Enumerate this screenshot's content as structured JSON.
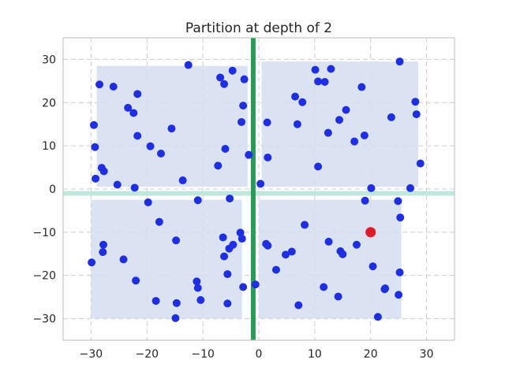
{
  "chart_data": {
    "type": "scatter",
    "title": "Partition at depth of 2",
    "xlim": [
      -35,
      35
    ],
    "ylim": [
      -35,
      35
    ],
    "xticks": [
      -30,
      -20,
      -10,
      0,
      10,
      20,
      30
    ],
    "yticks": [
      -30,
      -20,
      -10,
      0,
      10,
      20,
      30
    ],
    "grid": true,
    "colors": {
      "points": "#1f2ee6",
      "highlight": "#e01a2a",
      "region_fill": "#d5def0",
      "split_vertical": "#2a9a58",
      "split_horizontal": "#bfe8dc",
      "grid": "#cccccc",
      "frame": "#bfbfbf"
    },
    "split_lines": [
      {
        "orientation": "vertical",
        "x": -1
      },
      {
        "orientation": "horizontal",
        "y": -1
      }
    ],
    "regions": [
      {
        "x0": -29,
        "x1": -2,
        "y0": 0.5,
        "y1": 28.5
      },
      {
        "x0": 0.5,
        "x1": 28.5,
        "y0": 0.5,
        "y1": 29.5
      },
      {
        "x0": -30,
        "x1": -3,
        "y0": -30,
        "y1": -2.5
      },
      {
        "x0": 0,
        "x1": 25.5,
        "y0": -30,
        "y1": -2.5
      }
    ],
    "highlight_point": {
      "x": 20,
      "y": -10
    },
    "points": [
      [
        -29.5,
        14.8
      ],
      [
        -28.5,
        24.2
      ],
      [
        -29.3,
        9.7
      ],
      [
        -28.1,
        4.9
      ],
      [
        -27.7,
        4.1
      ],
      [
        -29.2,
        2.4
      ],
      [
        -26,
        23.7
      ],
      [
        -23.4,
        18.8
      ],
      [
        -22.4,
        17.6
      ],
      [
        -21.7,
        22
      ],
      [
        -21.7,
        12.3
      ],
      [
        -25.3,
        1.0
      ],
      [
        -22.2,
        0.3
      ],
      [
        -19.4,
        9.9
      ],
      [
        -17.5,
        8.2
      ],
      [
        -15.6,
        14
      ],
      [
        -13.6,
        2
      ],
      [
        -12.6,
        28.7
      ],
      [
        -6.9,
        25.8
      ],
      [
        -6.2,
        24.3
      ],
      [
        -6,
        9.3
      ],
      [
        -4.7,
        27.4
      ],
      [
        -2.6,
        25.4
      ],
      [
        -2.8,
        19.3
      ],
      [
        -3.1,
        15.5
      ],
      [
        -7.3,
        5.4
      ],
      [
        -1.8,
        7.9
      ],
      [
        0.3,
        1.2
      ],
      [
        1.5,
        15.4
      ],
      [
        1.6,
        7.3
      ],
      [
        6.5,
        21.4
      ],
      [
        7.8,
        20.1
      ],
      [
        6.9,
        15
      ],
      [
        10.1,
        27.6
      ],
      [
        10.6,
        24.9
      ],
      [
        11.8,
        24.8
      ],
      [
        12.9,
        27.8
      ],
      [
        12.4,
        13
      ],
      [
        14.4,
        16
      ],
      [
        15.6,
        18.3
      ],
      [
        17.1,
        11
      ],
      [
        18.4,
        23.6
      ],
      [
        18.9,
        12.4
      ],
      [
        10.6,
        5.2
      ],
      [
        20.1,
        0.2
      ],
      [
        23.7,
        16.6
      ],
      [
        25.2,
        29.5
      ],
      [
        28.0,
        20.2
      ],
      [
        28.2,
        17.3
      ],
      [
        28.9,
        5.9
      ],
      [
        27.1,
        0.2
      ],
      [
        -29.9,
        -17
      ],
      [
        -27.8,
        -12.9
      ],
      [
        -27.9,
        -14.6
      ],
      [
        -24.2,
        -16.3
      ],
      [
        -22,
        -21.2
      ],
      [
        -19.8,
        -3.1
      ],
      [
        -17.8,
        -7.6
      ],
      [
        -18.4,
        -25.9
      ],
      [
        -14.8,
        -11.9
      ],
      [
        -14.7,
        -26.4
      ],
      [
        -14.9,
        -29.9
      ],
      [
        -10.9,
        -2.6
      ],
      [
        -11.1,
        -21.4
      ],
      [
        -10.9,
        -22.9
      ],
      [
        -10.4,
        -25.7
      ],
      [
        -6.4,
        -11.2
      ],
      [
        -6.2,
        -15.6
      ],
      [
        -5.3,
        -13.8
      ],
      [
        -5.6,
        -19.7
      ],
      [
        -5.6,
        -26.5
      ],
      [
        -5.2,
        -2.2
      ],
      [
        -4.6,
        -12.9
      ],
      [
        -3.3,
        -10.1
      ],
      [
        -3,
        -11.5
      ],
      [
        -2.8,
        -22.7
      ],
      [
        -0.6,
        -22.1
      ],
      [
        1.3,
        -12.7
      ],
      [
        1.6,
        -13.1
      ],
      [
        3.1,
        -18.7
      ],
      [
        4.8,
        -15.2
      ],
      [
        5.9,
        -14.5
      ],
      [
        8.2,
        -8.3
      ],
      [
        7.1,
        -26.9
      ],
      [
        11.6,
        -22.7
      ],
      [
        12.5,
        -12.2
      ],
      [
        14.2,
        -24.9
      ],
      [
        14.6,
        -14.4
      ],
      [
        15,
        -15.1
      ],
      [
        17.5,
        -12.9
      ],
      [
        19,
        -2.7
      ],
      [
        20.4,
        -17.9
      ],
      [
        22.5,
        -23.2
      ],
      [
        22.6,
        -23
      ],
      [
        21.3,
        -29.6
      ],
      [
        25,
        -24.5
      ],
      [
        25.2,
        -19.3
      ],
      [
        25.3,
        -6.6
      ],
      [
        24.9,
        -2.8
      ]
    ]
  }
}
